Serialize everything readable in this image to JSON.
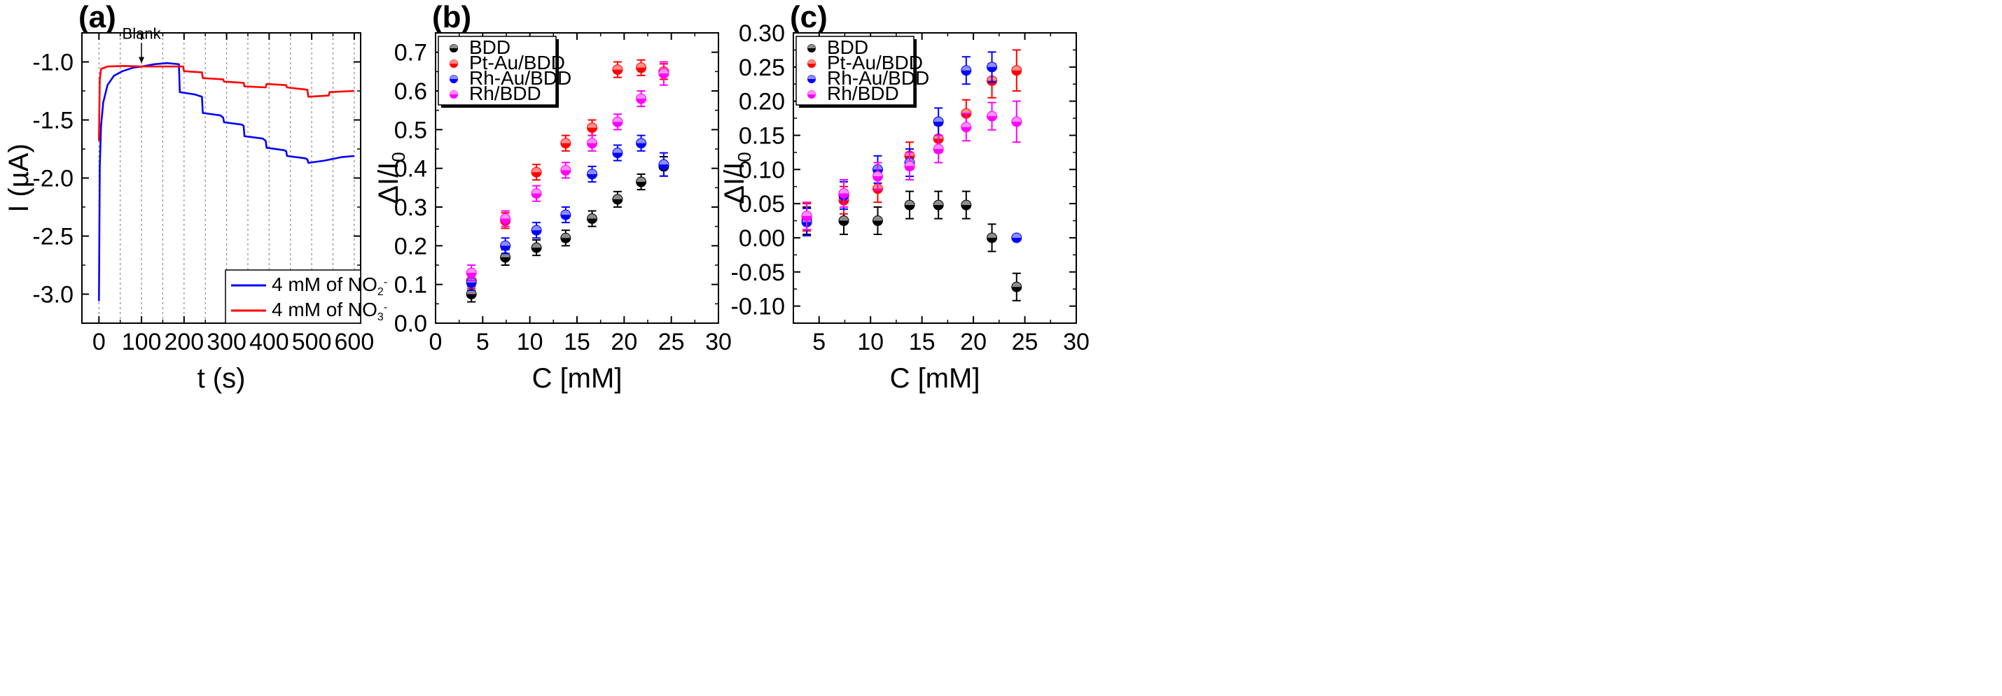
{
  "chart_data": [
    {
      "panel_label": "(a)",
      "type": "line",
      "title": "",
      "xlabel": "t (s)",
      "ylabel": "I (µA)",
      "xlim": [
        -40,
        615
      ],
      "ylim": [
        -3.25,
        -0.75
      ],
      "xticks": [
        0,
        100,
        200,
        300,
        400,
        500,
        600
      ],
      "yticks": [
        -3.0,
        -2.5,
        -2.0,
        -1.5,
        -1.0
      ],
      "ytick_labels": [
        "-3.0",
        "-2.5",
        "-2.0",
        "-1.5",
        "-1.0"
      ],
      "vlines": [
        0,
        50,
        100,
        150,
        200,
        250,
        300,
        350,
        400,
        450,
        500,
        550,
        600
      ],
      "annotation": {
        "text": "Blank",
        "x": 100,
        "y": -1.03
      },
      "legend": [
        {
          "label": "4 mM of NO",
          "sub": "2",
          "sup": "-",
          "color": "#0000ff"
        },
        {
          "label": "4 mM of NO",
          "sub": "3",
          "sup": "-",
          "color": "#ff0000"
        }
      ],
      "series": [
        {
          "name": "4 mM of NO2-",
          "color": "#0000ff",
          "points": [
            [
              0,
              -3.06
            ],
            [
              2,
              -1.9
            ],
            [
              5,
              -1.55
            ],
            [
              10,
              -1.35
            ],
            [
              20,
              -1.2
            ],
            [
              35,
              -1.12
            ],
            [
              55,
              -1.08
            ],
            [
              80,
              -1.05
            ],
            [
              100,
              -1.04
            ],
            [
              130,
              -1.02
            ],
            [
              160,
              -1.01
            ],
            [
              188,
              -1.02
            ],
            [
              190,
              -1.26
            ],
            [
              225,
              -1.28
            ],
            [
              242,
              -1.3
            ],
            [
              244,
              -1.44
            ],
            [
              285,
              -1.46
            ],
            [
              292,
              -1.48
            ],
            [
              294,
              -1.52
            ],
            [
              335,
              -1.54
            ],
            [
              340,
              -1.55
            ],
            [
              342,
              -1.64
            ],
            [
              385,
              -1.66
            ],
            [
              392,
              -1.68
            ],
            [
              394,
              -1.74
            ],
            [
              435,
              -1.76
            ],
            [
              440,
              -1.77
            ],
            [
              442,
              -1.81
            ],
            [
              485,
              -1.83
            ],
            [
              490,
              -1.84
            ],
            [
              492,
              -1.87
            ],
            [
              530,
              -1.85
            ],
            [
              570,
              -1.82
            ],
            [
              600,
              -1.81
            ]
          ]
        },
        {
          "name": "4 mM of NO3-",
          "color": "#ff0000",
          "points": [
            [
              0,
              -1.68
            ],
            [
              2,
              -1.15
            ],
            [
              5,
              -1.06
            ],
            [
              20,
              -1.04
            ],
            [
              60,
              -1.035
            ],
            [
              100,
              -1.04
            ],
            [
              150,
              -1.04
            ],
            [
              198,
              -1.04
            ],
            [
              200,
              -1.08
            ],
            [
              242,
              -1.09
            ],
            [
              244,
              -1.14
            ],
            [
              292,
              -1.15
            ],
            [
              294,
              -1.17
            ],
            [
              340,
              -1.18
            ],
            [
              342,
              -1.21
            ],
            [
              392,
              -1.22
            ],
            [
              394,
              -1.19
            ],
            [
              440,
              -1.2
            ],
            [
              442,
              -1.22
            ],
            [
              490,
              -1.24
            ],
            [
              492,
              -1.3
            ],
            [
              540,
              -1.29
            ],
            [
              542,
              -1.26
            ],
            [
              600,
              -1.25
            ]
          ]
        }
      ]
    },
    {
      "panel_label": "(b)",
      "type": "scatter",
      "title": "",
      "xlabel": "C [mM]",
      "ylabel": "ΔI/I",
      "ylabel_sub": "0",
      "xlim": [
        0,
        30
      ],
      "ylim": [
        0.0,
        0.75
      ],
      "xticks": [
        0,
        5,
        10,
        15,
        20,
        25,
        30
      ],
      "yticks": [
        0.0,
        0.1,
        0.2,
        0.3,
        0.4,
        0.5,
        0.6,
        0.7
      ],
      "ytick_labels": [
        "0.0",
        "0.1",
        "0.2",
        "0.3",
        "0.4",
        "0.5",
        "0.6",
        "0.7"
      ],
      "legend": [
        {
          "label": "BDD",
          "color": "#000000"
        },
        {
          "label": "Pt-Au/BDD",
          "color": "#ff0000"
        },
        {
          "label": "Rh-Au/BDD",
          "color": "#0000ff"
        },
        {
          "label": "Rh/BDD",
          "color": "#ff00ff"
        }
      ],
      "x": [
        3.8,
        7.4,
        10.7,
        13.8,
        16.6,
        19.3,
        21.8,
        24.2
      ],
      "series": [
        {
          "name": "BDD",
          "color": "#000000",
          "values": [
            0.075,
            0.17,
            0.195,
            0.22,
            0.27,
            0.32,
            0.365,
            0.405
          ],
          "errors": [
            0.02,
            0.02,
            0.02,
            0.02,
            0.02,
            0.02,
            0.02,
            0.025
          ]
        },
        {
          "name": "Pt-Au/BDD",
          "color": "#ff0000",
          "values": [
            0.11,
            0.265,
            0.39,
            0.465,
            0.505,
            0.655,
            0.66,
            0.65
          ],
          "errors": [
            0.02,
            0.02,
            0.02,
            0.02,
            0.02,
            0.02,
            0.02,
            0.02
          ]
        },
        {
          "name": "Rh-Au/BDD",
          "color": "#0000ff",
          "values": [
            0.105,
            0.2,
            0.24,
            0.28,
            0.385,
            0.44,
            0.465,
            0.41
          ],
          "errors": [
            0.02,
            0.02,
            0.02,
            0.02,
            0.02,
            0.02,
            0.02,
            0.03
          ]
        },
        {
          "name": "Rh/BDD",
          "color": "#ff00ff",
          "values": [
            0.13,
            0.27,
            0.335,
            0.395,
            0.465,
            0.52,
            0.58,
            0.645
          ],
          "errors": [
            0.02,
            0.02,
            0.02,
            0.02,
            0.02,
            0.02,
            0.02,
            0.03
          ]
        }
      ]
    },
    {
      "panel_label": "(c)",
      "type": "scatter",
      "title": "",
      "xlabel": "C [mM]",
      "ylabel": "ΔI/I",
      "ylabel_sub": "0",
      "xlim": [
        2.5,
        30
      ],
      "ylim": [
        -0.125,
        0.3
      ],
      "xticks": [
        5,
        10,
        15,
        20,
        25,
        30
      ],
      "yticks": [
        -0.1,
        -0.05,
        0.0,
        0.05,
        0.1,
        0.15,
        0.2,
        0.25,
        0.3
      ],
      "ytick_labels": [
        "-0.10",
        "-0.05",
        "0.00",
        "0.05",
        "0.10",
        "0.15",
        "0.20",
        "0.25",
        "0.30"
      ],
      "legend": [
        {
          "label": "BDD",
          "color": "#000000"
        },
        {
          "label": "Pt-Au/BDD",
          "color": "#ff0000"
        },
        {
          "label": "Rh-Au/BDD",
          "color": "#0000ff"
        },
        {
          "label": "Rh/BDD",
          "color": "#ff00ff"
        }
      ],
      "x": [
        3.8,
        7.4,
        10.7,
        13.8,
        16.6,
        19.3,
        21.8,
        24.2
      ],
      "series": [
        {
          "name": "BDD",
          "color": "#000000",
          "values": [
            0.025,
            0.025,
            0.025,
            0.048,
            0.048,
            0.048,
            0.0,
            -0.072
          ],
          "errors": [
            0.02,
            0.02,
            0.02,
            0.02,
            0.02,
            0.02,
            0.02,
            0.02
          ]
        },
        {
          "name": "Pt-Au/BDD",
          "color": "#ff0000",
          "values": [
            0.03,
            0.055,
            0.072,
            0.12,
            0.145,
            0.182,
            0.23,
            0.245
          ],
          "errors": [
            0.02,
            0.02,
            0.02,
            0.02,
            0.02,
            0.02,
            0.025,
            0.03
          ]
        },
        {
          "name": "Rh-Au/BDD",
          "color": "#0000ff",
          "values": [
            0.023,
            0.062,
            0.1,
            0.11,
            0.17,
            0.245,
            0.25,
            0.0
          ],
          "errors": [
            0.02,
            0.02,
            0.02,
            0.02,
            0.02,
            0.02,
            0.022,
            0.0
          ]
        },
        {
          "name": "Rh/BDD",
          "color": "#ff00ff",
          "values": [
            0.032,
            0.065,
            0.09,
            0.105,
            0.13,
            0.162,
            0.178,
            0.17
          ],
          "errors": [
            0.02,
            0.02,
            0.02,
            0.02,
            0.02,
            0.02,
            0.02,
            0.03
          ]
        }
      ]
    }
  ]
}
